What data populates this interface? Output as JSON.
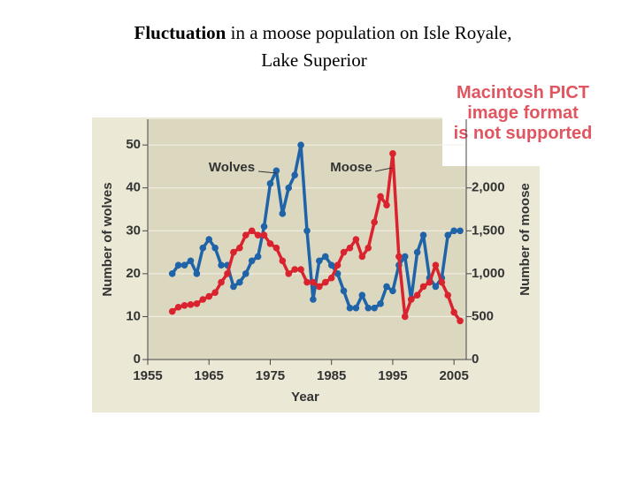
{
  "slide": {
    "title_bold": "Fluctuation",
    "title_rest": "in a moose population on Isle Royale,",
    "title_line2": "Lake Superior"
  },
  "notice": [
    "Macintosh PICT",
    "image format",
    "is not supported"
  ],
  "chart_data": {
    "type": "line",
    "x_label": "Year",
    "y_label": "Number of wolves",
    "y2_label": "Number of moose",
    "x": [
      1959,
      1960,
      1961,
      1962,
      1963,
      1964,
      1965,
      1966,
      1967,
      1968,
      1969,
      1970,
      1971,
      1972,
      1973,
      1974,
      1975,
      1976,
      1977,
      1978,
      1979,
      1980,
      1981,
      1982,
      1983,
      1984,
      1985,
      1986,
      1987,
      1988,
      1989,
      1990,
      1991,
      1992,
      1993,
      1994,
      1995,
      1996,
      1997,
      1998,
      1999,
      2000,
      2001,
      2002,
      2003,
      2004,
      2005,
      2006
    ],
    "series": [
      {
        "name": "Wolves",
        "color": "#1f63a8",
        "values": [
          20,
          22,
          22,
          23,
          20,
          26,
          28,
          26,
          22,
          22,
          17,
          18,
          20,
          23,
          24,
          31,
          41,
          44,
          34,
          40,
          43,
          50,
          30,
          14,
          23,
          24,
          22,
          20,
          16,
          12,
          12,
          15,
          12,
          12,
          13,
          17,
          16,
          22,
          24,
          14,
          25,
          29,
          19,
          17,
          19,
          29,
          30,
          30
        ]
      },
      {
        "name": "Moose",
        "color": "#d9232e",
        "axis": "y2",
        "values": [
          560,
          610,
          630,
          640,
          650,
          700,
          735,
          780,
          900,
          1000,
          1250,
          1300,
          1450,
          1500,
          1450,
          1450,
          1350,
          1300,
          1150,
          1000,
          1050,
          1050,
          900,
          900,
          850,
          900,
          950,
          1100,
          1250,
          1300,
          1400,
          1200,
          1300,
          1600,
          1900,
          1800,
          2400,
          1200,
          500,
          700,
          750,
          850,
          900,
          1100,
          900,
          750,
          550,
          450
        ]
      }
    ],
    "xlim": [
      1955,
      2007
    ],
    "xticks": [
      1955,
      1965,
      1975,
      1985,
      1995,
      2005
    ],
    "ylim": [
      0,
      56
    ],
    "yticks": [
      0,
      10,
      20,
      30,
      40,
      50
    ],
    "y2lim": [
      0,
      2800
    ],
    "y2ticks": [
      0,
      500,
      {
        "value": 1000,
        "label": "1,000"
      },
      {
        "value": 1500,
        "label": "1,500"
      },
      {
        "value": 2000,
        "label": "2,000"
      }
    ],
    "grid": true
  }
}
